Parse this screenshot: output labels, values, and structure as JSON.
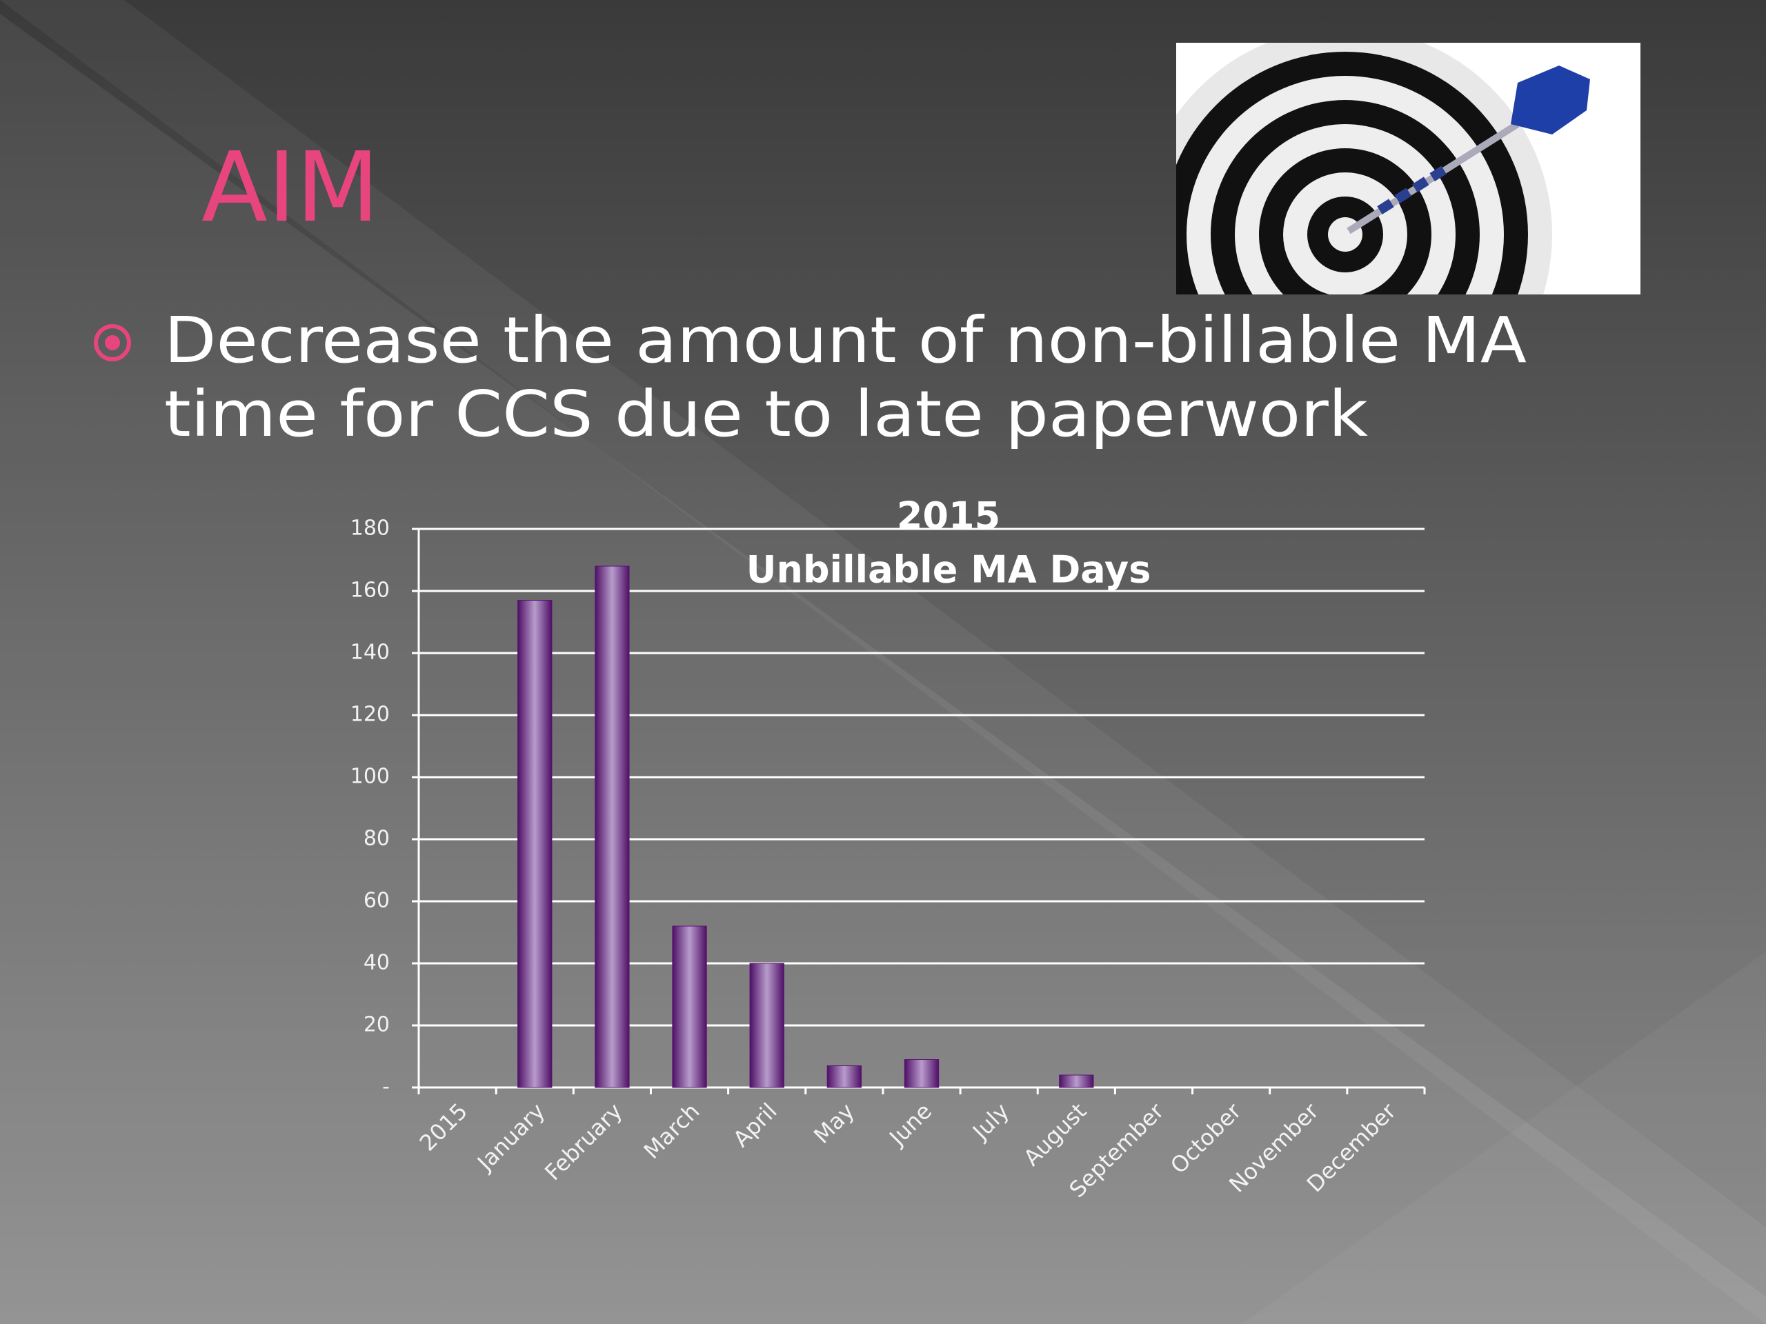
{
  "slide": {
    "heading": "AIM",
    "bullet_lines": [
      "Decrease the amount of non-billable MA",
      "time for CCS  due to late paperwork"
    ]
  },
  "chart_data": {
    "type": "bar",
    "title": "2015",
    "subtitle": "Unbillable MA Days",
    "categories": [
      "2015",
      "January",
      "February",
      "March",
      "April",
      "May",
      "June",
      "July",
      "August",
      "September",
      "October",
      "November",
      "December"
    ],
    "values": [
      null,
      157,
      168,
      52,
      40,
      7,
      9,
      null,
      4,
      null,
      null,
      null,
      null
    ],
    "color": "#5a1470",
    "ylim": [
      0,
      180
    ],
    "yticks": [
      {
        "value": 0,
        "label": "-"
      },
      20,
      40,
      60,
      80,
      100,
      120,
      140,
      160,
      180
    ],
    "grid": true
  }
}
